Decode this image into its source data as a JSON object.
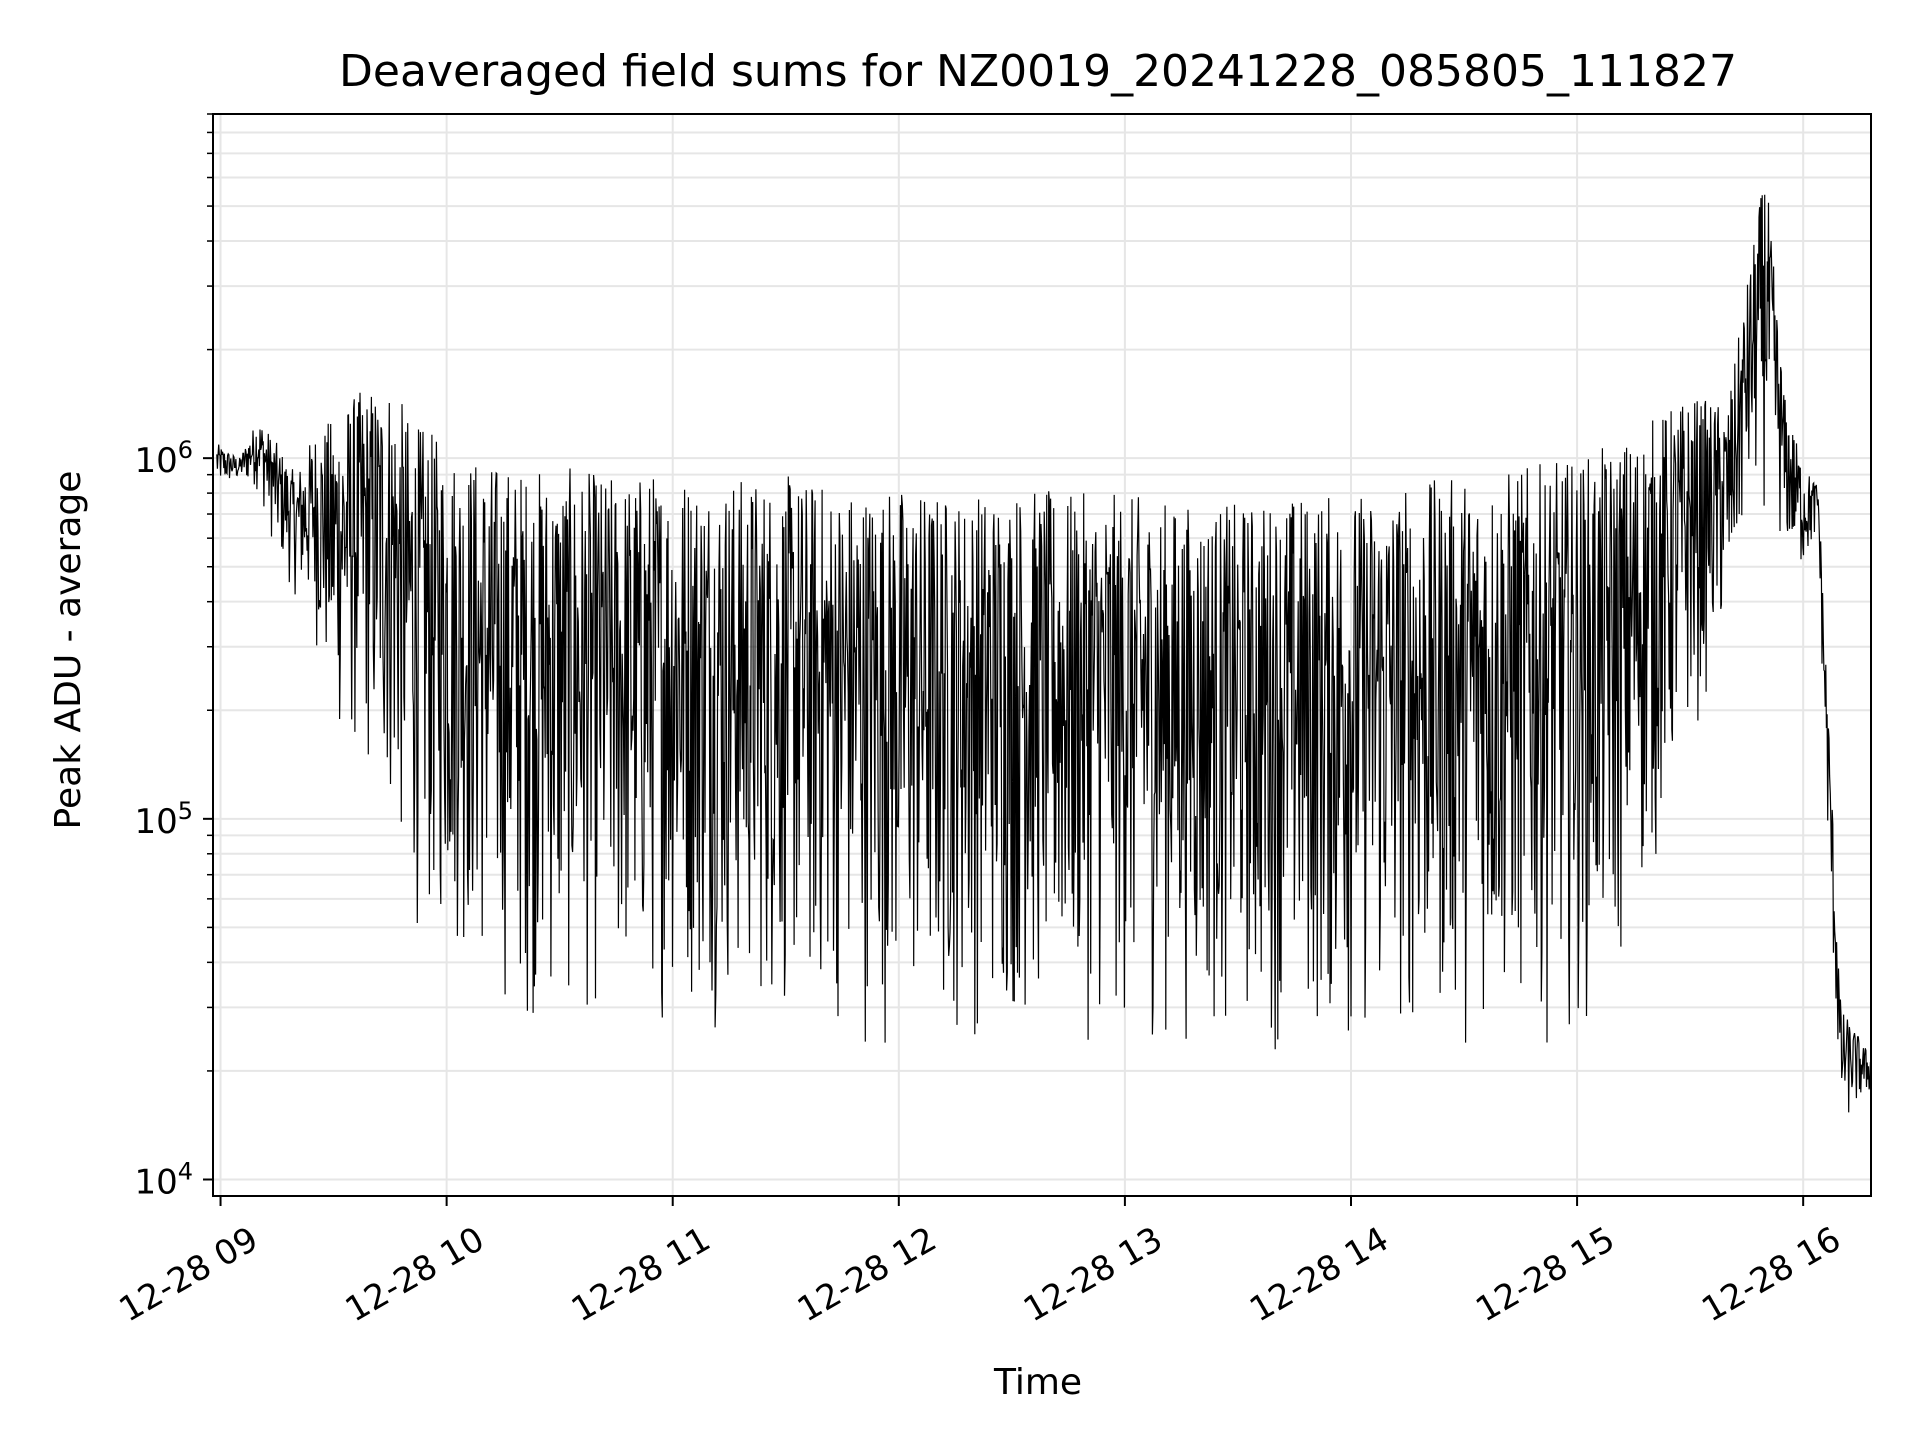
{
  "chart_data": {
    "type": "line",
    "title": "Deaveraged field sums for NZ0019_20241228_085805_111827",
    "xlabel": "Time",
    "ylabel": "Peak ADU - average",
    "yscale": "log",
    "ylim": [
      9000,
      9000000
    ],
    "xlim": [
      "2024-12-28T08:58:00",
      "2024-12-28T16:18:00"
    ],
    "grid": true,
    "line_color": "#000000",
    "x_ticks": [
      "12-28 09",
      "12-28 10",
      "12-28 11",
      "12-28 12",
      "12-28 13",
      "12-28 14",
      "12-28 15",
      "12-28 16"
    ],
    "x_tick_times": [
      "2024-12-28T09:00",
      "2024-12-28T10:00",
      "2024-12-28T11:00",
      "2024-12-28T12:00",
      "2024-12-28T13:00",
      "2024-12-28T14:00",
      "2024-12-28T15:00",
      "2024-12-28T16:00"
    ],
    "y_ticks": [
      {
        "base": "10",
        "exp": "4",
        "value": 10000
      },
      {
        "base": "10",
        "exp": "5",
        "value": 100000
      },
      {
        "base": "10",
        "exp": "6",
        "value": 1000000
      }
    ],
    "series": [
      {
        "x": [
          "2024-12-28T08:59",
          "2024-12-28T09:05",
          "2024-12-28T09:10",
          "2024-12-28T09:15",
          "2024-12-28T09:20",
          "2024-12-28T09:25",
          "2024-12-28T09:30",
          "2024-12-28T09:35",
          "2024-12-28T09:40",
          "2024-12-28T09:45",
          "2024-12-28T09:50",
          "2024-12-28T09:55",
          "2024-12-28T10:00",
          "2024-12-28T10:10",
          "2024-12-28T10:20",
          "2024-12-28T10:30",
          "2024-12-28T10:45",
          "2024-12-28T11:00",
          "2024-12-28T11:15",
          "2024-12-28T11:30",
          "2024-12-28T11:45",
          "2024-12-28T12:00",
          "2024-12-28T12:15",
          "2024-12-28T12:30",
          "2024-12-28T12:45",
          "2024-12-28T13:00",
          "2024-12-28T13:15",
          "2024-12-28T13:30",
          "2024-12-28T13:45",
          "2024-12-28T14:00",
          "2024-12-28T14:15",
          "2024-12-28T14:30",
          "2024-12-28T14:45",
          "2024-12-28T15:00",
          "2024-12-28T15:10",
          "2024-12-28T15:20",
          "2024-12-28T15:30",
          "2024-12-28T15:40",
          "2024-12-28T15:45",
          "2024-12-28T15:50",
          "2024-12-28T15:55",
          "2024-12-28T16:00",
          "2024-12-28T16:04",
          "2024-12-28T16:06",
          "2024-12-28T16:10",
          "2024-12-28T16:18"
        ],
        "upper": [
          1100000,
          1000000,
          1300000,
          1100000,
          900000,
          1200000,
          1300000,
          1500000,
          1600000,
          1700000,
          1300000,
          1200000,
          1100000,
          1000000,
          950000,
          950000,
          900000,
          950000,
          900000,
          900000,
          850000,
          850000,
          800000,
          850000,
          800000,
          800000,
          750000,
          750000,
          800000,
          800000,
          850000,
          900000,
          950000,
          1000000,
          1100000,
          1300000,
          1500000,
          1400000,
          3000000,
          6500000,
          1500000,
          950000,
          850000,
          300000,
          30000,
          22000
        ],
        "lower": [
          800000,
          850000,
          800000,
          500000,
          400000,
          300000,
          150000,
          130000,
          110000,
          80000,
          50000,
          40000,
          40000,
          30000,
          25000,
          24000,
          25000,
          26000,
          25000,
          24000,
          23000,
          21000,
          22000,
          23000,
          23000,
          22000,
          22000,
          22000,
          21000,
          20000,
          21000,
          22000,
          23000,
          24000,
          30000,
          60000,
          150000,
          300000,
          600000,
          700000,
          500000,
          450000,
          600000,
          100000,
          13000,
          17000
        ]
      }
    ]
  }
}
